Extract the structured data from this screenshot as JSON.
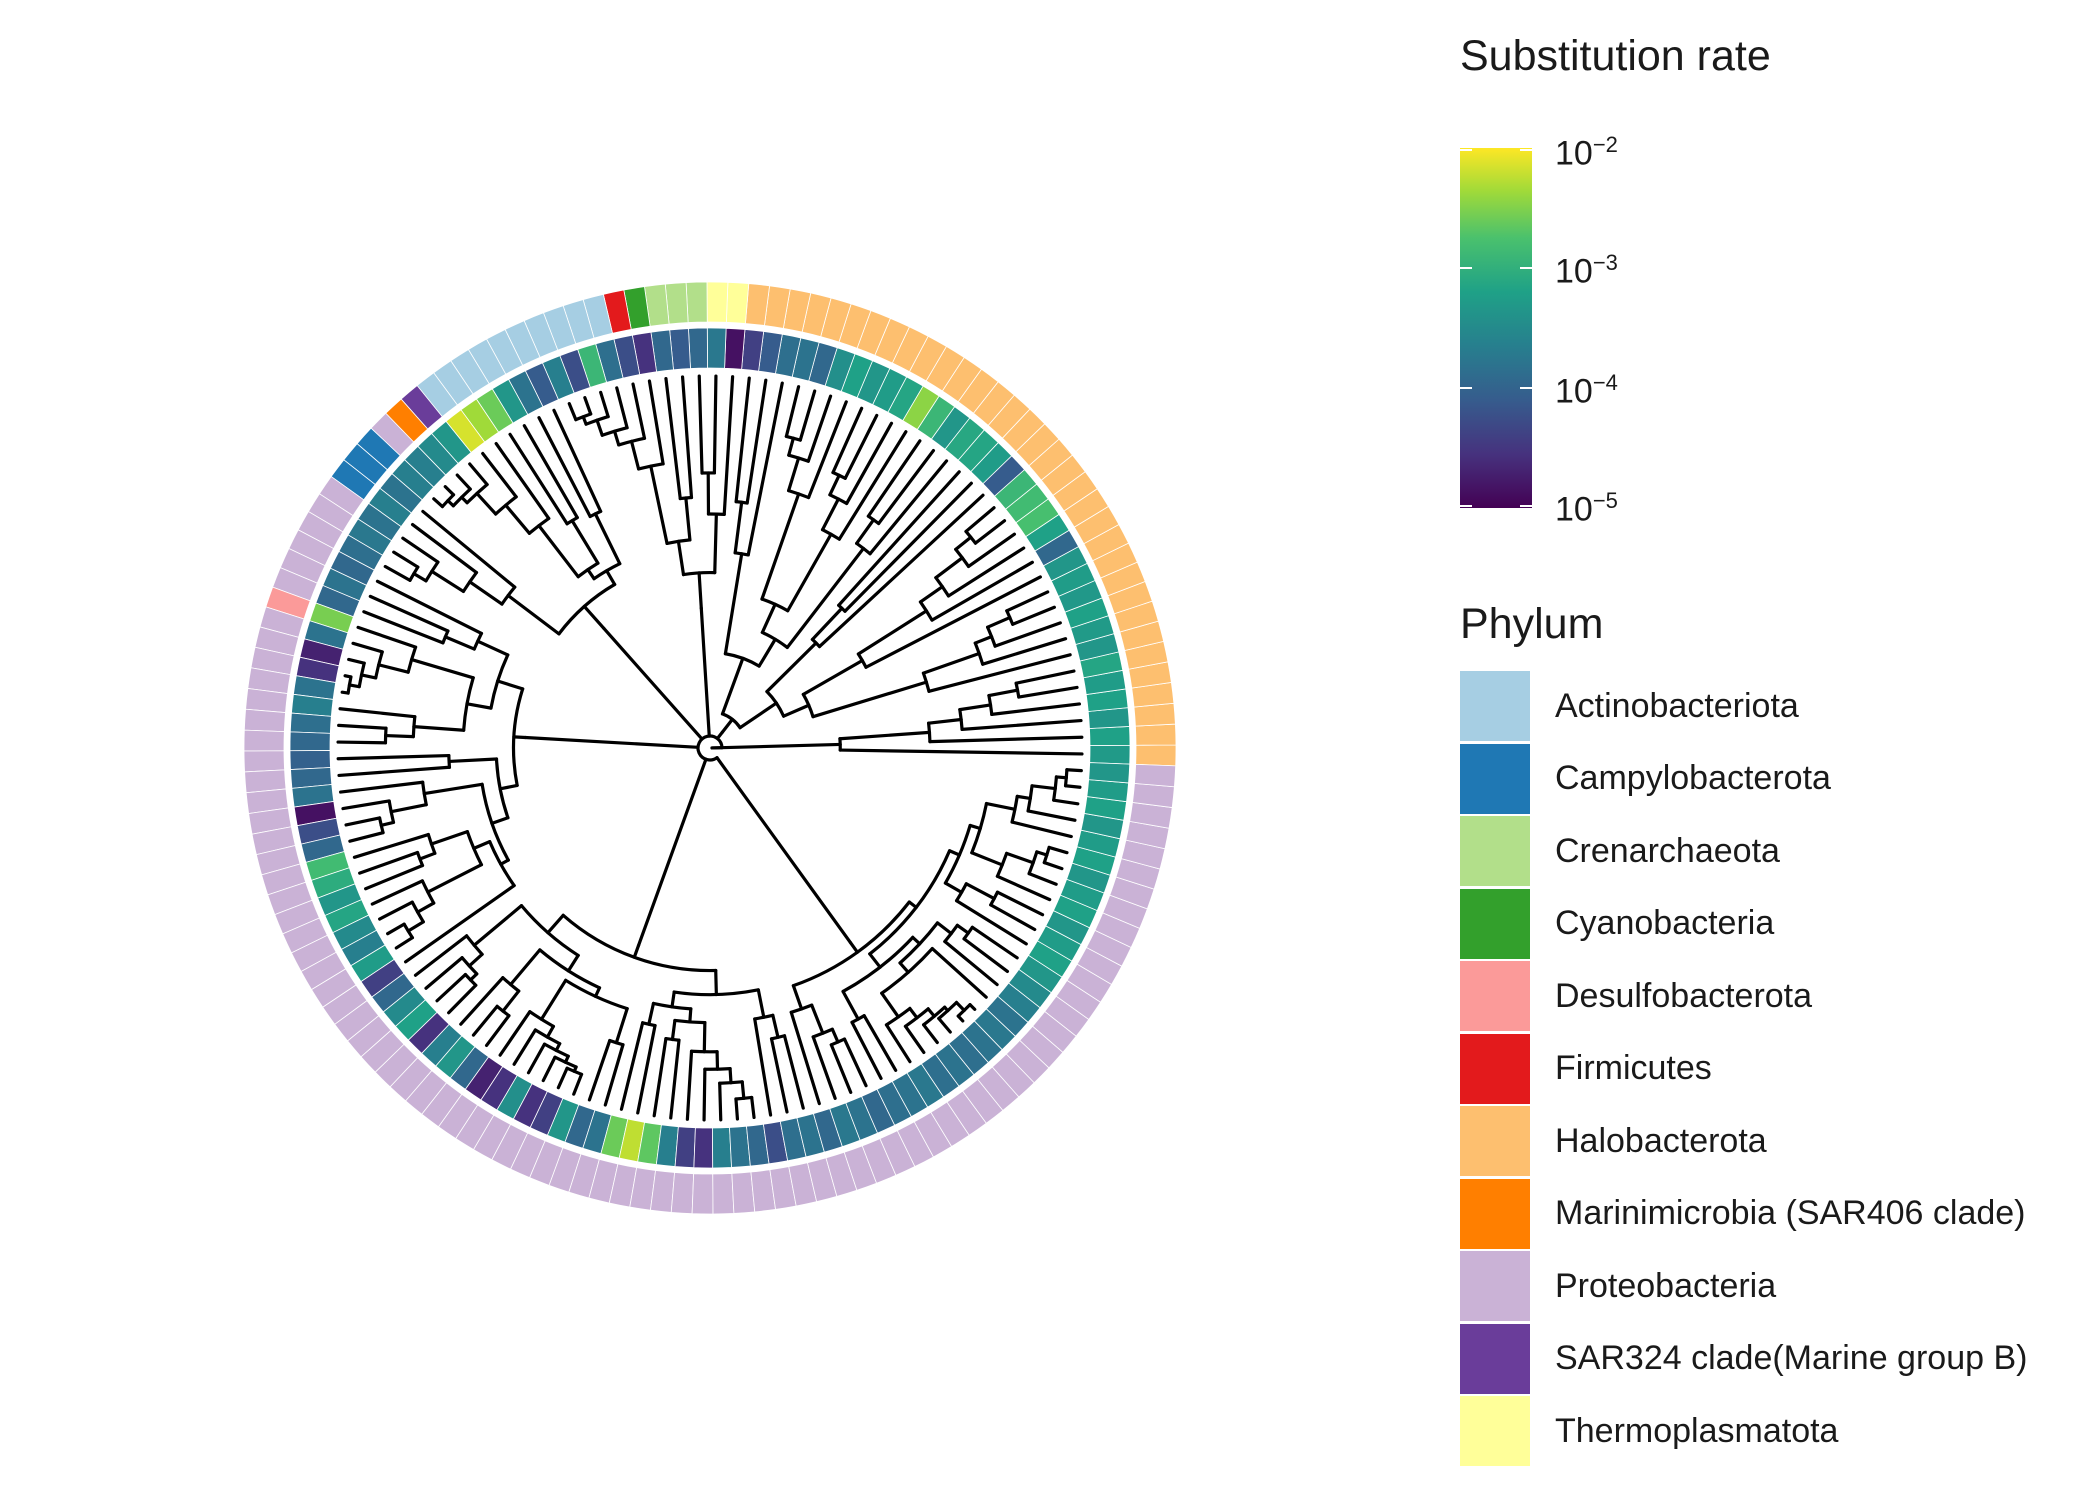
{
  "colorbar": {
    "title": "Substitution rate",
    "gradient": [
      "#440154",
      "#3b528b",
      "#21908c",
      "#5dc863",
      "#fde725"
    ],
    "ticks": [
      {
        "base": "10",
        "exp": "−2"
      },
      {
        "base": "10",
        "exp": "−3"
      },
      {
        "base": "10",
        "exp": "−4"
      },
      {
        "base": "10",
        "exp": "−5"
      }
    ]
  },
  "phylum_legend": {
    "title": "Phylum",
    "items": [
      {
        "label": "Actinobacteriota",
        "color": "#a6cee3"
      },
      {
        "label": "Campylobacterota",
        "color": "#1f78b4"
      },
      {
        "label": "Crenarchaeota",
        "color": "#b2df8a"
      },
      {
        "label": "Cyanobacteria",
        "color": "#33a02c"
      },
      {
        "label": "Desulfobacterota",
        "color": "#fb9a99"
      },
      {
        "label": "Firmicutes",
        "color": "#e31a1c"
      },
      {
        "label": "Halobacterota",
        "color": "#fdbf6f"
      },
      {
        "label": "Marinimicrobia (SAR406 clade)",
        "color": "#ff7f00"
      },
      {
        "label": "Proteobacteria",
        "color": "#cab2d6"
      },
      {
        "label": "SAR324 clade(Marine group B)",
        "color": "#6a3d9a"
      },
      {
        "label": "Thermoplasmatota",
        "color": "#ffff99"
      }
    ]
  },
  "phylum_ring_sequence": [
    "H",
    "H",
    "H",
    "H",
    "H",
    "H",
    "H",
    "H",
    "H",
    "H",
    "H",
    "H",
    "H",
    "H",
    "H",
    "H",
    "H",
    "H",
    "H",
    "H",
    "H",
    "H",
    "H",
    "H",
    "H",
    "H",
    "H",
    "H",
    "H",
    "H",
    "H",
    "H",
    "H",
    "H",
    "T",
    "T",
    "C",
    "C",
    "C",
    "Y",
    "F",
    "A",
    "A",
    "A",
    "A",
    "A",
    "A",
    "A",
    "A",
    "A",
    "A",
    "S",
    "M",
    "P",
    "B",
    "B",
    "B",
    "P",
    "P",
    "P",
    "P",
    "P",
    "P",
    "D",
    "P",
    "P",
    "P",
    "P",
    "P",
    "P",
    "P",
    "P",
    "P",
    "P",
    "P",
    "P",
    "P",
    "P",
    "P",
    "P",
    "P",
    "P",
    "P",
    "P",
    "P",
    "P",
    "P",
    "P",
    "P",
    "P",
    "P",
    "P",
    "P",
    "P",
    "P",
    "P",
    "P",
    "P",
    "P",
    "P",
    "P",
    "P",
    "P",
    "P",
    "P",
    "P",
    "P",
    "P",
    "P",
    "P",
    "P",
    "P",
    "P",
    "P",
    "P",
    "P",
    "P",
    "P",
    "P",
    "P",
    "P",
    "P",
    "P",
    "P",
    "P",
    "P",
    "P",
    "P",
    "P",
    "P",
    "P",
    "P",
    "P",
    "P",
    "P",
    "P",
    "P",
    "P",
    "P",
    "P"
  ],
  "rate_ring_values": [
    0.57,
    0.6,
    0.55,
    0.6,
    0.58,
    0.62,
    0.55,
    0.57,
    0.6,
    0.56,
    0.58,
    0.55,
    0.35,
    0.6,
    0.74,
    0.72,
    0.7,
    0.3,
    0.58,
    0.62,
    0.63,
    0.55,
    0.7,
    0.85,
    0.62,
    0.58,
    0.55,
    0.6,
    0.52,
    0.35,
    0.4,
    0.38,
    0.3,
    0.2,
    0.05,
    0.42,
    0.35,
    0.3,
    0.35,
    0.15,
    0.25,
    0.38,
    0.7,
    0.25,
    0.45,
    0.3,
    0.4,
    0.55,
    0.8,
    0.88,
    0.95,
    0.55,
    0.5,
    0.45,
    0.45,
    0.4,
    0.45,
    0.4,
    0.42,
    0.38,
    0.35,
    0.4,
    0.35,
    0.82,
    0.4,
    0.1,
    0.15,
    0.4,
    0.45,
    0.38,
    0.35,
    0.32,
    0.35,
    0.4,
    0.05,
    0.25,
    0.35,
    0.72,
    0.65,
    0.55,
    0.62,
    0.5,
    0.45,
    0.58,
    0.2,
    0.35,
    0.5,
    0.6,
    0.15,
    0.45,
    0.55,
    0.35,
    0.1,
    0.15,
    0.52,
    0.15,
    0.2,
    0.55,
    0.35,
    0.4,
    0.8,
    0.92,
    0.78,
    0.45,
    0.2,
    0.15,
    0.45,
    0.4,
    0.35,
    0.25,
    0.38,
    0.4,
    0.35,
    0.42,
    0.4,
    0.35,
    0.38,
    0.4,
    0.42,
    0.38,
    0.4,
    0.38,
    0.4,
    0.42,
    0.4,
    0.45,
    0.5,
    0.55,
    0.6,
    0.58,
    0.55,
    0.6,
    0.58,
    0.55,
    0.6,
    0.58,
    0.55,
    0.6,
    0.58,
    0.55,
    0.6,
    0.58
  ]
}
